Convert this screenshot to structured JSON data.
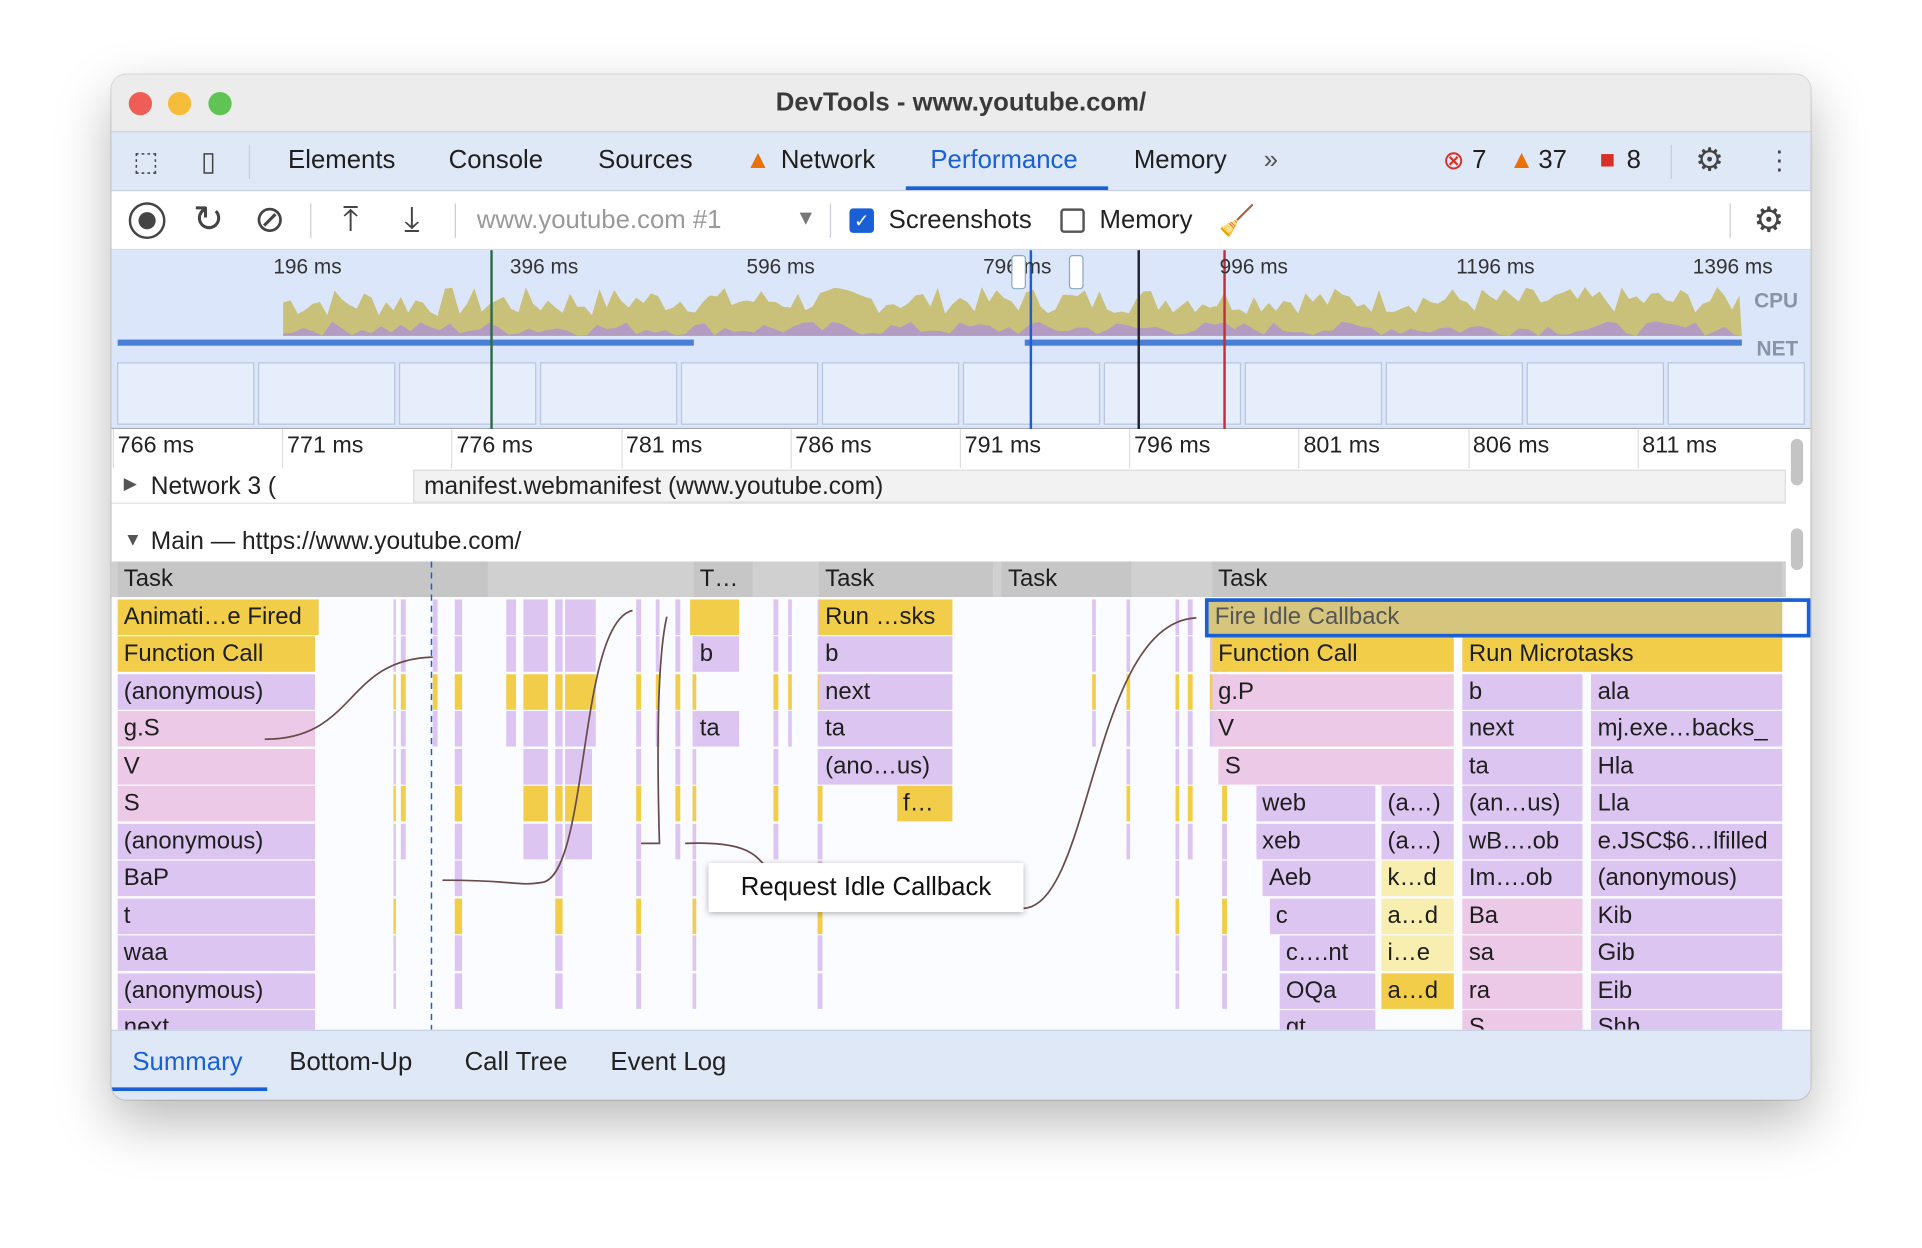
{
  "window": {
    "title": "DevTools - www.youtube.com/"
  },
  "tabs": [
    {
      "label": "Elements"
    },
    {
      "label": "Console"
    },
    {
      "label": "Sources"
    },
    {
      "label": "Network",
      "icon": "warning-icon"
    },
    {
      "label": "Performance",
      "active": true
    },
    {
      "label": "Memory"
    }
  ],
  "status": {
    "errors": "7",
    "warnings": "37",
    "issues": "8"
  },
  "toolbar": {
    "target": "www.youtube.com #1",
    "screenshots_label": "Screenshots",
    "screenshots_checked": true,
    "memory_label": "Memory",
    "memory_checked": false
  },
  "overview": {
    "ticks": [
      "196 ms",
      "396 ms",
      "596 ms",
      "796 ms",
      "996 ms",
      "1196 ms",
      "1396 ms"
    ],
    "cpu_label": "CPU",
    "net_label": "NET"
  },
  "ruler": {
    "ticks": [
      "766 ms",
      "771 ms",
      "776 ms",
      "781 ms",
      "786 ms",
      "791 ms",
      "796 ms",
      "801 ms",
      "806 ms",
      "811 ms"
    ]
  },
  "network": {
    "label": "Network 3 (",
    "request": "manifest.webmanifest (www.youtube.com)"
  },
  "main": {
    "label": "Main — https://www.youtube.com/"
  },
  "colors": {
    "yellow": "#f2cd4a",
    "purple": "#dcc6f1",
    "pink": "#ecc9e6",
    "lightyellow": "#f7eeb0",
    "gray": "#c6c6c6",
    "selected": "#d6c57c",
    "accent": "#1a5fd6"
  },
  "flame": [
    {
      "d": 0,
      "s": 766.0,
      "e": 777.0,
      "c": "gray",
      "t": "Task"
    },
    {
      "d": 0,
      "s": 783.0,
      "e": 784.8,
      "c": "gray",
      "t": "T…"
    },
    {
      "d": 0,
      "s": 786.7,
      "e": 791.9,
      "c": "gray",
      "t": "Task"
    },
    {
      "d": 0,
      "s": 792.1,
      "e": 796.0,
      "c": "gray",
      "t": "Task"
    },
    {
      "d": 0,
      "s": 798.3,
      "e": 815.2,
      "c": "gray",
      "t": "Task"
    },
    {
      "d": 1,
      "s": 766.0,
      "e": 772.0,
      "c": "yellow",
      "t": "Animati…e Fired"
    },
    {
      "d": 1,
      "s": 782.9,
      "e": 784.4,
      "c": "yellow",
      "t": ""
    },
    {
      "d": 1,
      "s": 786.7,
      "e": 790.7,
      "c": "yellow",
      "t": "Run …sks"
    },
    {
      "d": 1,
      "s": 798.2,
      "e": 815.2,
      "c": "selected",
      "t": "Fire Idle Callback"
    },
    {
      "d": 2,
      "s": 766.0,
      "e": 771.9,
      "c": "yellow",
      "t": "Function Call"
    },
    {
      "d": 2,
      "s": 783.0,
      "e": 784.4,
      "c": "purple",
      "t": "b"
    },
    {
      "d": 2,
      "s": 786.7,
      "e": 790.7,
      "c": "purple",
      "t": "b"
    },
    {
      "d": 2,
      "s": 798.3,
      "e": 805.5,
      "c": "yellow",
      "t": "Function Call"
    },
    {
      "d": 2,
      "s": 805.7,
      "e": 815.2,
      "c": "yellow",
      "t": "Run Microtasks"
    },
    {
      "d": 3,
      "s": 766.0,
      "e": 771.9,
      "c": "purple",
      "t": "(anonymous)"
    },
    {
      "d": 3,
      "s": 786.7,
      "e": 790.7,
      "c": "purple",
      "t": "next"
    },
    {
      "d": 3,
      "s": 798.3,
      "e": 805.5,
      "c": "pink",
      "t": "g.P"
    },
    {
      "d": 3,
      "s": 805.7,
      "e": 809.3,
      "c": "purple",
      "t": "b"
    },
    {
      "d": 3,
      "s": 809.5,
      "e": 815.2,
      "c": "purple",
      "t": "ala"
    },
    {
      "d": 4,
      "s": 766.0,
      "e": 771.9,
      "c": "pink",
      "t": "g.S"
    },
    {
      "d": 4,
      "s": 783.0,
      "e": 784.4,
      "c": "purple",
      "t": "ta"
    },
    {
      "d": 4,
      "s": 786.7,
      "e": 790.7,
      "c": "purple",
      "t": "ta"
    },
    {
      "d": 4,
      "s": 798.3,
      "e": 805.5,
      "c": "pink",
      "t": "V"
    },
    {
      "d": 4,
      "s": 805.7,
      "e": 809.3,
      "c": "purple",
      "t": "next"
    },
    {
      "d": 4,
      "s": 809.5,
      "e": 815.2,
      "c": "purple",
      "t": "mj.exe…backs_"
    },
    {
      "d": 5,
      "s": 766.0,
      "e": 771.9,
      "c": "pink",
      "t": "V"
    },
    {
      "d": 5,
      "s": 786.7,
      "e": 790.7,
      "c": "purple",
      "t": "(ano…us)"
    },
    {
      "d": 5,
      "s": 798.5,
      "e": 805.5,
      "c": "pink",
      "t": "S"
    },
    {
      "d": 5,
      "s": 805.7,
      "e": 809.3,
      "c": "purple",
      "t": "ta"
    },
    {
      "d": 5,
      "s": 809.5,
      "e": 815.2,
      "c": "purple",
      "t": "Hla"
    },
    {
      "d": 6,
      "s": 766.0,
      "e": 771.9,
      "c": "pink",
      "t": "S"
    },
    {
      "d": 6,
      "s": 789.0,
      "e": 790.7,
      "c": "yellow",
      "t": "f…"
    },
    {
      "d": 6,
      "s": 799.6,
      "e": 803.2,
      "c": "purple",
      "t": "web"
    },
    {
      "d": 6,
      "s": 803.3,
      "e": 805.5,
      "c": "purple",
      "t": "(a…)"
    },
    {
      "d": 6,
      "s": 805.7,
      "e": 809.3,
      "c": "purple",
      "t": "(an…us)"
    },
    {
      "d": 6,
      "s": 809.5,
      "e": 815.2,
      "c": "purple",
      "t": "Lla"
    },
    {
      "d": 7,
      "s": 766.0,
      "e": 771.9,
      "c": "purple",
      "t": "(anonymous)"
    },
    {
      "d": 7,
      "s": 799.6,
      "e": 803.2,
      "c": "purple",
      "t": "xeb"
    },
    {
      "d": 7,
      "s": 803.3,
      "e": 805.5,
      "c": "purple",
      "t": "(a…)"
    },
    {
      "d": 7,
      "s": 805.7,
      "e": 809.3,
      "c": "purple",
      "t": "wB….ob"
    },
    {
      "d": 7,
      "s": 809.5,
      "e": 815.2,
      "c": "purple",
      "t": "e.JSC$6…lfilled"
    },
    {
      "d": 8,
      "s": 766.0,
      "e": 771.9,
      "c": "purple",
      "t": "BaP"
    },
    {
      "d": 8,
      "s": 799.8,
      "e": 803.2,
      "c": "purple",
      "t": "Aeb"
    },
    {
      "d": 8,
      "s": 803.3,
      "e": 805.5,
      "c": "lightyellow",
      "t": "k…d"
    },
    {
      "d": 8,
      "s": 805.7,
      "e": 809.3,
      "c": "purple",
      "t": "Im….ob"
    },
    {
      "d": 8,
      "s": 809.5,
      "e": 815.2,
      "c": "purple",
      "t": "(anonymous)"
    },
    {
      "d": 9,
      "s": 766.0,
      "e": 771.9,
      "c": "purple",
      "t": "t"
    },
    {
      "d": 9,
      "s": 800.0,
      "e": 803.2,
      "c": "purple",
      "t": "c"
    },
    {
      "d": 9,
      "s": 803.3,
      "e": 805.5,
      "c": "lightyellow",
      "t": "a…d"
    },
    {
      "d": 9,
      "s": 805.7,
      "e": 809.3,
      "c": "pink",
      "t": "Ba"
    },
    {
      "d": 9,
      "s": 809.5,
      "e": 815.2,
      "c": "purple",
      "t": "Kib"
    },
    {
      "d": 10,
      "s": 766.0,
      "e": 771.9,
      "c": "purple",
      "t": "waa"
    },
    {
      "d": 10,
      "s": 800.3,
      "e": 803.2,
      "c": "purple",
      "t": "c….nt"
    },
    {
      "d": 10,
      "s": 803.3,
      "e": 805.5,
      "c": "lightyellow",
      "t": "i…e"
    },
    {
      "d": 10,
      "s": 805.7,
      "e": 809.3,
      "c": "pink",
      "t": "sa"
    },
    {
      "d": 10,
      "s": 809.5,
      "e": 815.2,
      "c": "purple",
      "t": "Gib"
    },
    {
      "d": 11,
      "s": 766.0,
      "e": 771.9,
      "c": "purple",
      "t": "(anonymous)"
    },
    {
      "d": 11,
      "s": 800.3,
      "e": 803.2,
      "c": "purple",
      "t": "OQa"
    },
    {
      "d": 11,
      "s": 803.3,
      "e": 805.5,
      "c": "yellow",
      "t": "a…d"
    },
    {
      "d": 11,
      "s": 805.7,
      "e": 809.3,
      "c": "pink",
      "t": "ra"
    },
    {
      "d": 11,
      "s": 809.5,
      "e": 815.2,
      "c": "purple",
      "t": "Eib"
    },
    {
      "d": 12,
      "s": 766.0,
      "e": 771.9,
      "c": "purple",
      "t": "next"
    },
    {
      "d": 12,
      "s": 800.3,
      "e": 803.2,
      "c": "purple",
      "t": "gt"
    },
    {
      "d": 12,
      "s": 805.7,
      "e": 809.3,
      "c": "pink",
      "t": "S"
    },
    {
      "d": 12,
      "s": 809.5,
      "e": 815.2,
      "c": "purple",
      "t": "Shb"
    }
  ],
  "tooltip": "Request Idle Callback",
  "bottom_tabs": [
    {
      "label": "Summary",
      "active": true
    },
    {
      "label": "Bottom-Up"
    },
    {
      "label": "Call Tree"
    },
    {
      "label": "Event Log"
    }
  ]
}
